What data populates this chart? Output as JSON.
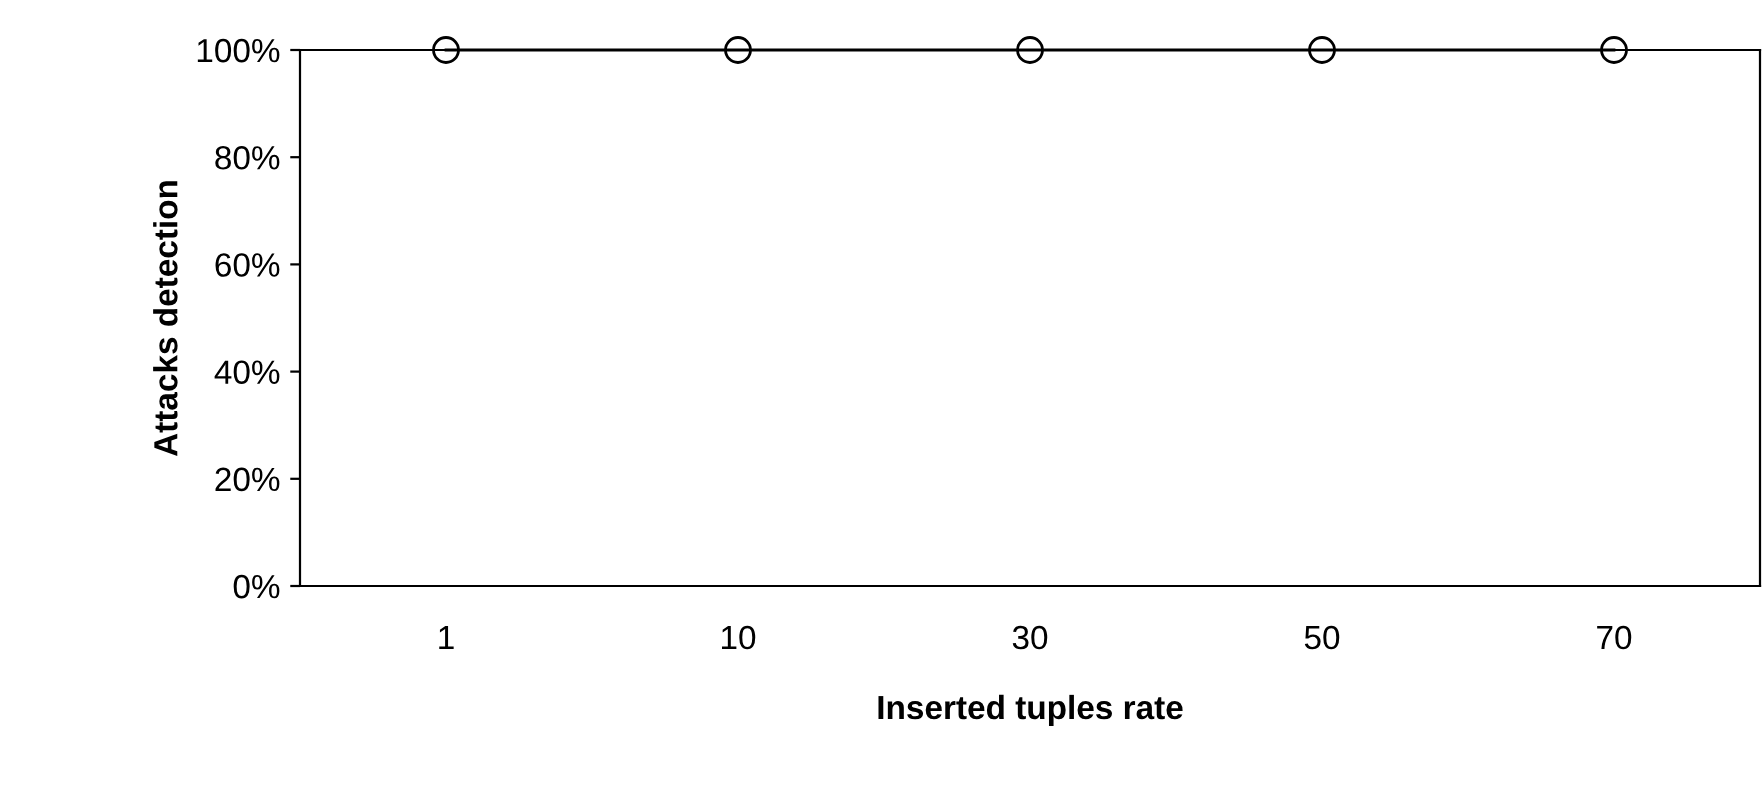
{
  "chart_data": {
    "type": "line",
    "xlabel": "Inserted tuples rate",
    "ylabel": "Attacks detection",
    "categories": [
      "1",
      "10",
      "30",
      "50",
      "70"
    ],
    "series": [
      {
        "color": "#000000",
        "values": [
          100,
          100,
          100,
          100,
          100
        ]
      }
    ],
    "ylim": [
      0,
      100
    ],
    "yticks": [
      {
        "value": 0,
        "label": "0%"
      },
      {
        "value": 20,
        "label": "20%"
      },
      {
        "value": 40,
        "label": "40%"
      },
      {
        "value": 60,
        "label": "60%"
      },
      {
        "value": 80,
        "label": "80%"
      },
      {
        "value": 100,
        "label": "100%"
      }
    ],
    "marker": "circle",
    "line_style": "solid",
    "grid": false,
    "legend": false
  }
}
